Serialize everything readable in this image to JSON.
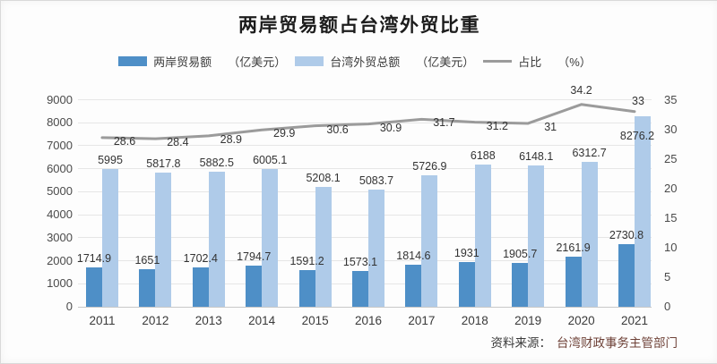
{
  "title": "两岸贸易额占台湾外贸比重",
  "legend": [
    {
      "label": "两岸贸易额",
      "unit": "（亿美元）",
      "color": "#4E8FC7",
      "type": "bar"
    },
    {
      "label": "台湾外贸总额",
      "unit": "（亿美元）",
      "color": "#AFCBE9",
      "type": "bar"
    },
    {
      "label": "占比",
      "unit": "（%）",
      "color": "#9B9B9B",
      "type": "line"
    }
  ],
  "source_note": {
    "prefix": "资料来源：",
    "org": "台湾财政事务主管部门"
  },
  "colors": {
    "bar_dark_blue": "#4E8FC7",
    "bar_light_blue": "#AFCBE9",
    "ratio_line_gray": "#9B9B9B",
    "gridline": "#E6E6E6",
    "axis_zero_line": "#C8C8C8",
    "label_text": "#333333",
    "source_org_text": "#6E4137"
  },
  "chart_data": {
    "type": "bar",
    "subtype": "grouped bars with secondary-axis line (combo chart)",
    "title": "两岸贸易额占台湾外贸比重",
    "categories": [
      "2011",
      "2012",
      "2013",
      "2014",
      "2015",
      "2016",
      "2017",
      "2018",
      "2019",
      "2020",
      "2021"
    ],
    "series": [
      {
        "name": "两岸贸易额",
        "unit": "亿美元",
        "type": "bar",
        "axis": "left",
        "color": "#4E8FC7",
        "values": [
          1714.9,
          1651,
          1702.4,
          1794.7,
          1591.2,
          1573.1,
          1814.6,
          1931,
          1905.7,
          2161.9,
          2730.8
        ]
      },
      {
        "name": "台湾外贸总额",
        "unit": "亿美元",
        "type": "bar",
        "axis": "left",
        "color": "#AFCBE9",
        "values": [
          5995,
          5817.8,
          5882.5,
          6005.1,
          5208.1,
          5083.7,
          5726.9,
          6188,
          6148.1,
          6312.7,
          8276.2
        ]
      },
      {
        "name": "占比",
        "unit": "%",
        "type": "line",
        "axis": "right",
        "color": "#9B9B9B",
        "values": [
          28.6,
          28.4,
          28.9,
          29.9,
          30.6,
          30.9,
          31.7,
          31.2,
          31,
          34.2,
          33
        ]
      }
    ],
    "left_axis": {
      "min": 0,
      "max": 9000,
      "step": 1000,
      "ticks": [
        0,
        1000,
        2000,
        3000,
        4000,
        5000,
        6000,
        7000,
        8000,
        9000
      ]
    },
    "right_axis": {
      "min": 0,
      "max": 35,
      "step": 5,
      "ticks": [
        0,
        5,
        10,
        15,
        20,
        25,
        30,
        35
      ]
    },
    "grid": true,
    "legend_position": "top",
    "data_labels": true
  }
}
